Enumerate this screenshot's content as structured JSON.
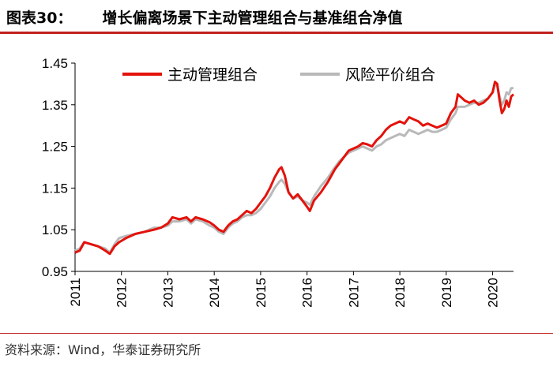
{
  "header": {
    "figure_label": "图表30：",
    "title": "增长偏离场景下主动管理组合与基准组合净值"
  },
  "footer": {
    "source": "资料来源：Wind，华泰证券研究所"
  },
  "colors": {
    "accent": "#c0201e",
    "active": "#e3120b",
    "benchmark": "#b9b9b9"
  },
  "chart_data": {
    "type": "line",
    "title": "",
    "xlabel": "",
    "ylabel": "",
    "ylim": [
      0.95,
      1.45
    ],
    "xlim": [
      2011.0,
      2020.45
    ],
    "y_ticks": [
      "0.95",
      "1.05",
      "1.15",
      "1.25",
      "1.35",
      "1.45"
    ],
    "x_ticks": [
      "2011",
      "2012",
      "2013",
      "2014",
      "2015",
      "2016",
      "2017",
      "2018",
      "2019",
      "2020"
    ],
    "grid": false,
    "legend_position": "top",
    "series": [
      {
        "name": "主动管理组合",
        "color": "#e3120b",
        "points": [
          [
            2011.0,
            0.995
          ],
          [
            2011.1,
            1.0
          ],
          [
            2011.2,
            1.02
          ],
          [
            2011.35,
            1.015
          ],
          [
            2011.5,
            1.01
          ],
          [
            2011.65,
            1.0
          ],
          [
            2011.75,
            0.992
          ],
          [
            2011.85,
            1.01
          ],
          [
            2011.95,
            1.02
          ],
          [
            2012.1,
            1.03
          ],
          [
            2012.3,
            1.04
          ],
          [
            2012.5,
            1.045
          ],
          [
            2012.7,
            1.05
          ],
          [
            2012.85,
            1.055
          ],
          [
            2013.0,
            1.065
          ],
          [
            2013.1,
            1.08
          ],
          [
            2013.25,
            1.075
          ],
          [
            2013.4,
            1.08
          ],
          [
            2013.5,
            1.07
          ],
          [
            2013.6,
            1.08
          ],
          [
            2013.75,
            1.075
          ],
          [
            2013.9,
            1.068
          ],
          [
            2014.0,
            1.06
          ],
          [
            2014.1,
            1.05
          ],
          [
            2014.2,
            1.045
          ],
          [
            2014.3,
            1.06
          ],
          [
            2014.4,
            1.07
          ],
          [
            2014.5,
            1.075
          ],
          [
            2014.6,
            1.085
          ],
          [
            2014.7,
            1.095
          ],
          [
            2014.8,
            1.09
          ],
          [
            2014.9,
            1.1
          ],
          [
            2015.0,
            1.115
          ],
          [
            2015.1,
            1.13
          ],
          [
            2015.2,
            1.15
          ],
          [
            2015.3,
            1.175
          ],
          [
            2015.4,
            1.195
          ],
          [
            2015.45,
            1.2
          ],
          [
            2015.52,
            1.18
          ],
          [
            2015.6,
            1.14
          ],
          [
            2015.7,
            1.125
          ],
          [
            2015.8,
            1.135
          ],
          [
            2015.9,
            1.12
          ],
          [
            2016.0,
            1.105
          ],
          [
            2016.06,
            1.095
          ],
          [
            2016.15,
            1.12
          ],
          [
            2016.3,
            1.14
          ],
          [
            2016.45,
            1.165
          ],
          [
            2016.6,
            1.195
          ],
          [
            2016.7,
            1.21
          ],
          [
            2016.8,
            1.225
          ],
          [
            2016.9,
            1.24
          ],
          [
            2017.0,
            1.245
          ],
          [
            2017.1,
            1.25
          ],
          [
            2017.2,
            1.258
          ],
          [
            2017.3,
            1.255
          ],
          [
            2017.4,
            1.25
          ],
          [
            2017.5,
            1.265
          ],
          [
            2017.6,
            1.275
          ],
          [
            2017.7,
            1.29
          ],
          [
            2017.8,
            1.3
          ],
          [
            2017.9,
            1.305
          ],
          [
            2018.0,
            1.31
          ],
          [
            2018.1,
            1.305
          ],
          [
            2018.2,
            1.32
          ],
          [
            2018.3,
            1.315
          ],
          [
            2018.4,
            1.31
          ],
          [
            2018.5,
            1.3
          ],
          [
            2018.6,
            1.305
          ],
          [
            2018.7,
            1.3
          ],
          [
            2018.8,
            1.295
          ],
          [
            2018.9,
            1.3
          ],
          [
            2019.0,
            1.305
          ],
          [
            2019.1,
            1.33
          ],
          [
            2019.2,
            1.345
          ],
          [
            2019.25,
            1.375
          ],
          [
            2019.3,
            1.37
          ],
          [
            2019.4,
            1.36
          ],
          [
            2019.5,
            1.355
          ],
          [
            2019.6,
            1.36
          ],
          [
            2019.7,
            1.35
          ],
          [
            2019.8,
            1.355
          ],
          [
            2019.9,
            1.365
          ],
          [
            2020.0,
            1.38
          ],
          [
            2020.05,
            1.405
          ],
          [
            2020.1,
            1.4
          ],
          [
            2020.15,
            1.36
          ],
          [
            2020.2,
            1.33
          ],
          [
            2020.25,
            1.34
          ],
          [
            2020.3,
            1.36
          ],
          [
            2020.35,
            1.345
          ],
          [
            2020.4,
            1.37
          ],
          [
            2020.45,
            1.375
          ]
        ]
      },
      {
        "name": "风险平价组合",
        "color": "#b9b9b9",
        "points": [
          [
            2011.0,
            1.0
          ],
          [
            2011.1,
            1.005
          ],
          [
            2011.2,
            1.02
          ],
          [
            2011.35,
            1.015
          ],
          [
            2011.5,
            1.01
          ],
          [
            2011.65,
            1.005
          ],
          [
            2011.75,
            0.995
          ],
          [
            2011.85,
            1.015
          ],
          [
            2011.95,
            1.03
          ],
          [
            2012.1,
            1.035
          ],
          [
            2012.3,
            1.04
          ],
          [
            2012.5,
            1.045
          ],
          [
            2012.7,
            1.055
          ],
          [
            2012.85,
            1.055
          ],
          [
            2013.0,
            1.06
          ],
          [
            2013.1,
            1.07
          ],
          [
            2013.25,
            1.07
          ],
          [
            2013.4,
            1.075
          ],
          [
            2013.5,
            1.065
          ],
          [
            2013.6,
            1.075
          ],
          [
            2013.75,
            1.07
          ],
          [
            2013.9,
            1.06
          ],
          [
            2014.0,
            1.055
          ],
          [
            2014.1,
            1.045
          ],
          [
            2014.2,
            1.04
          ],
          [
            2014.3,
            1.055
          ],
          [
            2014.4,
            1.065
          ],
          [
            2014.5,
            1.07
          ],
          [
            2014.6,
            1.08
          ],
          [
            2014.7,
            1.085
          ],
          [
            2014.8,
            1.085
          ],
          [
            2014.9,
            1.09
          ],
          [
            2015.0,
            1.1
          ],
          [
            2015.1,
            1.115
          ],
          [
            2015.2,
            1.13
          ],
          [
            2015.3,
            1.15
          ],
          [
            2015.4,
            1.165
          ],
          [
            2015.45,
            1.17
          ],
          [
            2015.52,
            1.16
          ],
          [
            2015.6,
            1.14
          ],
          [
            2015.7,
            1.125
          ],
          [
            2015.8,
            1.13
          ],
          [
            2015.9,
            1.12
          ],
          [
            2016.0,
            1.115
          ],
          [
            2016.06,
            1.11
          ],
          [
            2016.15,
            1.13
          ],
          [
            2016.3,
            1.155
          ],
          [
            2016.45,
            1.175
          ],
          [
            2016.6,
            1.2
          ],
          [
            2016.7,
            1.215
          ],
          [
            2016.8,
            1.225
          ],
          [
            2016.9,
            1.235
          ],
          [
            2017.0,
            1.24
          ],
          [
            2017.1,
            1.245
          ],
          [
            2017.2,
            1.25
          ],
          [
            2017.3,
            1.245
          ],
          [
            2017.4,
            1.24
          ],
          [
            2017.5,
            1.25
          ],
          [
            2017.6,
            1.255
          ],
          [
            2017.7,
            1.265
          ],
          [
            2017.8,
            1.27
          ],
          [
            2017.9,
            1.275
          ],
          [
            2018.0,
            1.28
          ],
          [
            2018.1,
            1.275
          ],
          [
            2018.2,
            1.29
          ],
          [
            2018.3,
            1.285
          ],
          [
            2018.4,
            1.28
          ],
          [
            2018.5,
            1.285
          ],
          [
            2018.6,
            1.29
          ],
          [
            2018.7,
            1.285
          ],
          [
            2018.8,
            1.285
          ],
          [
            2018.9,
            1.29
          ],
          [
            2019.0,
            1.295
          ],
          [
            2019.1,
            1.315
          ],
          [
            2019.2,
            1.33
          ],
          [
            2019.25,
            1.345
          ],
          [
            2019.3,
            1.345
          ],
          [
            2019.4,
            1.345
          ],
          [
            2019.5,
            1.35
          ],
          [
            2019.6,
            1.355
          ],
          [
            2019.7,
            1.355
          ],
          [
            2019.8,
            1.36
          ],
          [
            2019.9,
            1.365
          ],
          [
            2020.0,
            1.38
          ],
          [
            2020.05,
            1.4
          ],
          [
            2020.1,
            1.395
          ],
          [
            2020.15,
            1.37
          ],
          [
            2020.2,
            1.35
          ],
          [
            2020.25,
            1.36
          ],
          [
            2020.3,
            1.38
          ],
          [
            2020.35,
            1.375
          ],
          [
            2020.4,
            1.39
          ],
          [
            2020.45,
            1.39
          ]
        ]
      }
    ]
  }
}
